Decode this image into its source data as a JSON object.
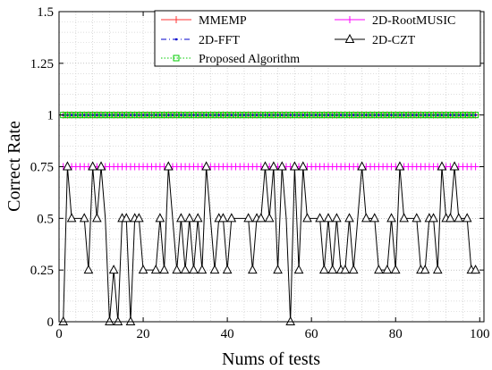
{
  "chart_data": {
    "type": "line",
    "title": "",
    "xlabel": "Nums of tests",
    "ylabel": "Correct Rate",
    "xlim": [
      0,
      101
    ],
    "ylim": [
      0,
      1.5
    ],
    "x_ticks": [
      0,
      20,
      40,
      60,
      80,
      100
    ],
    "y_ticks": [
      0,
      0.25,
      0.5,
      0.75,
      1,
      1.25,
      1.5
    ],
    "y_tick_labels": [
      "0",
      "0.25",
      "0.5",
      "0.75",
      "1",
      "1.25",
      "1.5"
    ],
    "grid": "major and minor dotted",
    "legend_position": "top-right",
    "series": [
      {
        "name": "MMEMP",
        "color": "#ff3333",
        "marker": "plus",
        "dash": "solid",
        "constant": 1.0
      },
      {
        "name": "2D-RootMUSIC",
        "color": "#ff00ff",
        "marker": "plus",
        "dash": "solid",
        "constant": 0.75
      },
      {
        "name": "2D-FFT",
        "color": "#0000cc",
        "marker": "point",
        "dash": "dashdot",
        "constant": 1.0
      },
      {
        "name": "2D-CZT",
        "color": "#000000",
        "marker": "triangle",
        "dash": "solid",
        "values": [
          0,
          0.75,
          0.5,
          0.5,
          0.5,
          0.5,
          0.25,
          0.75,
          0.5,
          0.75,
          0.5,
          0,
          0.25,
          0,
          0.5,
          0.5,
          0,
          0.5,
          0.5,
          0.25,
          0.25,
          0.25,
          0.25,
          0.5,
          0.25,
          0.75,
          0.5,
          0.25,
          0.5,
          0.25,
          0.5,
          0.25,
          0.5,
          0.25,
          0.75,
          0.5,
          0.25,
          0.5,
          0.5,
          0.25,
          0.5,
          0.5,
          0.5,
          0.5,
          0.5,
          0.25,
          0.5,
          0.5,
          0.75,
          0.5,
          0.75,
          0.25,
          0.75,
          0.5,
          0,
          0.75,
          0.25,
          0.75,
          0.5,
          0.5,
          0.5,
          0.5,
          0.25,
          0.5,
          0.25,
          0.5,
          0.25,
          0.25,
          0.5,
          0.25,
          0.5,
          0.75,
          0.5,
          0.5,
          0.5,
          0.25,
          0.25,
          0.25,
          0.5,
          0.25,
          0.75,
          0.5,
          0.5,
          0.5,
          0.5,
          0.25,
          0.25,
          0.5,
          0.5,
          0.25,
          0.75,
          0.5,
          0.5,
          0.75,
          0.5,
          0.5,
          0.5,
          0.25,
          0.25
        ]
      },
      {
        "name": "Proposed Algorithm",
        "color": "#00cc00",
        "marker": "square",
        "dash": "dotted",
        "constant": 1.0
      }
    ],
    "n_points": 99
  }
}
